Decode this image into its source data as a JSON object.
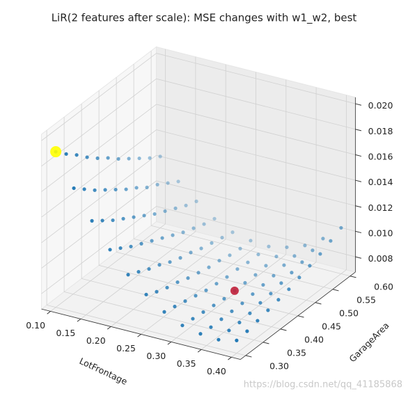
{
  "chart_data": {
    "type": "scatter3d",
    "title": "LiR(2 features after scale): MSE changes with w1_w2, best",
    "xlabel": "LotFrontage",
    "ylabel": "GarageArea",
    "watermark": "https://blog.csdn.net/qq_41185868",
    "color": "#1f77b4",
    "x": [
      0.1,
      0.13,
      0.16,
      0.19,
      0.22,
      0.25,
      0.28,
      0.31,
      0.34,
      0.37,
      0.4
    ],
    "y": [
      0.3,
      0.33,
      0.36,
      0.39,
      0.42,
      0.45,
      0.48,
      0.51,
      0.54,
      0.57,
      0.6
    ],
    "z": [
      [
        0.019,
        0.0182,
        0.0175,
        0.0167,
        0.016,
        0.0154,
        0.0147,
        0.0141,
        0.0135,
        0.0129,
        0.0124
      ],
      [
        0.0165,
        0.0158,
        0.0151,
        0.0145,
        0.0139,
        0.0133,
        0.0128,
        0.0122,
        0.0118,
        0.0113,
        0.0108
      ],
      [
        0.0143,
        0.0137,
        0.0131,
        0.0126,
        0.0121,
        0.0116,
        0.0111,
        0.0107,
        0.0103,
        0.0099,
        0.0096
      ],
      [
        0.0124,
        0.0119,
        0.0114,
        0.011,
        0.0106,
        0.0102,
        0.0098,
        0.0094,
        0.0091,
        0.0088,
        0.0086
      ],
      [
        0.0108,
        0.0104,
        0.01,
        0.0097,
        0.0093,
        0.009,
        0.0088,
        0.0085,
        0.0083,
        0.0081,
        0.0079
      ],
      [
        0.0096,
        0.0092,
        0.0089,
        0.0087,
        0.0084,
        0.0082,
        0.008,
        0.0079,
        0.0077,
        0.0076,
        0.0076
      ],
      [
        0.0086,
        0.0084,
        0.0082,
        0.008,
        0.0078,
        0.0077,
        0.0076,
        0.0076,
        0.0075,
        0.0075,
        0.0075
      ],
      [
        0.0079,
        0.0078,
        0.0077,
        0.0076,
        0.0075,
        0.0075,
        0.0075,
        0.0075,
        0.0076,
        0.0077,
        0.0078
      ],
      [
        0.0076,
        0.0075,
        0.0075,
        0.0075,
        0.0075,
        0.0076,
        0.0077,
        0.0078,
        0.008,
        0.0081,
        0.0083
      ],
      [
        0.0075,
        0.0076,
        0.0076,
        0.0077,
        0.0079,
        0.008,
        0.0082,
        0.0084,
        0.0086,
        0.0089,
        0.0092
      ],
      [
        0.0078,
        0.0079,
        0.0081,
        0.0083,
        0.0085,
        0.0087,
        0.009,
        0.0093,
        0.0096,
        0.01,
        0.0104
      ]
    ],
    "start": {
      "x": 0.1,
      "y": 0.3,
      "z": 0.019,
      "color": "#ffff00"
    },
    "best": {
      "x": 0.31,
      "y": 0.45,
      "z": 0.0075,
      "color": "#c0203a"
    },
    "xlim": [
      0.085,
      0.415
    ],
    "ylim": [
      0.285,
      0.615
    ],
    "zlim": [
      0.0068,
      0.0205
    ],
    "xticks": [
      {
        "value": 0.1,
        "label": "0.10"
      },
      {
        "value": 0.15,
        "label": "0.15"
      },
      {
        "value": 0.2,
        "label": "0.20"
      },
      {
        "value": 0.25,
        "label": "0.25"
      },
      {
        "value": 0.3,
        "label": "0.30"
      },
      {
        "value": 0.35,
        "label": "0.35"
      },
      {
        "value": 0.4,
        "label": "0.40"
      }
    ],
    "yticks": [
      {
        "value": 0.3,
        "label": "0.30"
      },
      {
        "value": 0.35,
        "label": "0.35"
      },
      {
        "value": 0.4,
        "label": "0.40"
      },
      {
        "value": 0.45,
        "label": "0.45"
      },
      {
        "value": 0.5,
        "label": "0.50"
      },
      {
        "value": 0.55,
        "label": "0.55"
      },
      {
        "value": 0.6,
        "label": "0.60"
      }
    ],
    "zticks": [
      {
        "value": 0.008,
        "label": "0.008"
      },
      {
        "value": 0.01,
        "label": "0.010"
      },
      {
        "value": 0.012,
        "label": "0.012"
      },
      {
        "value": 0.014,
        "label": "0.014"
      },
      {
        "value": 0.016,
        "label": "0.016"
      },
      {
        "value": 0.018,
        "label": "0.018"
      },
      {
        "value": 0.02,
        "label": "0.020"
      }
    ],
    "grid": true
  }
}
